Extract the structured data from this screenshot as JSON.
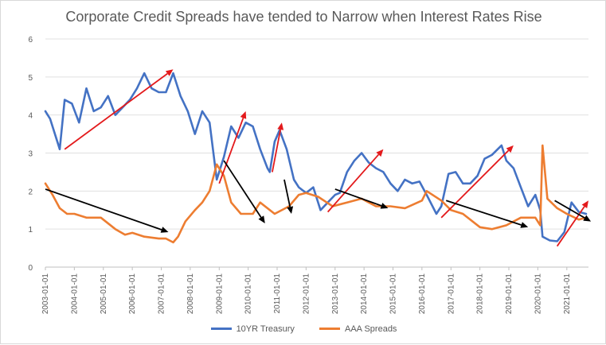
{
  "chart_data": {
    "type": "line",
    "title": "Corporate Credit Spreads have tended to Narrow when Interest Rates Rise",
    "xlabel": "",
    "ylabel": "",
    "ylim": [
      0,
      6
    ],
    "yticks": [
      "0",
      "1",
      "2",
      "3",
      "4",
      "5",
      "6"
    ],
    "xlim": [
      "2003-01-01",
      "2021-10-01"
    ],
    "xticks": [
      "2003-01-01",
      "2004-01-01",
      "2005-01-01",
      "2006-01-01",
      "2007-01-01",
      "2008-01-01",
      "2009-01-01",
      "2010-01-01",
      "2011-01-01",
      "2012-01-01",
      "2013-01-01",
      "2014-01-01",
      "2015-01-01",
      "2016-01-01",
      "2017-01-01",
      "2018-01-01",
      "2019-01-01",
      "2020-01-01",
      "2021-01-01"
    ],
    "grid": true,
    "legend_position": "bottom",
    "colors": {
      "treasury": "#4472c4",
      "spreads": "#ed7d31",
      "up_arrow": "#e31a1c",
      "down_arrow": "#000000"
    },
    "series": [
      {
        "name": "10YR Treasury",
        "x": [
          "2003-01-01",
          "2003-03-01",
          "2003-06-01",
          "2003-07-01",
          "2003-09-01",
          "2003-12-01",
          "2004-03-01",
          "2004-06-01",
          "2004-09-01",
          "2004-12-01",
          "2005-03-01",
          "2005-06-01",
          "2005-09-01",
          "2005-12-01",
          "2006-03-01",
          "2006-06-01",
          "2006-09-01",
          "2006-12-01",
          "2007-03-01",
          "2007-06-01",
          "2007-09-01",
          "2007-12-01",
          "2008-03-01",
          "2008-06-01",
          "2008-09-01",
          "2008-12-01",
          "2009-03-01",
          "2009-06-01",
          "2009-09-01",
          "2009-12-01",
          "2010-03-01",
          "2010-06-01",
          "2010-09-01",
          "2010-10-01",
          "2010-12-01",
          "2011-02-01",
          "2011-05-01",
          "2011-08-01",
          "2011-10-01",
          "2012-01-01",
          "2012-04-01",
          "2012-07-01",
          "2012-10-01",
          "2013-01-01",
          "2013-03-01",
          "2013-06-01",
          "2013-09-01",
          "2013-12-01",
          "2014-03-01",
          "2014-06-01",
          "2014-09-01",
          "2014-12-01",
          "2015-03-01",
          "2015-06-01",
          "2015-09-01",
          "2015-12-01",
          "2016-03-01",
          "2016-07-01",
          "2016-09-01",
          "2016-12-01",
          "2017-03-01",
          "2017-06-01",
          "2017-09-01",
          "2017-12-01",
          "2018-03-01",
          "2018-06-01",
          "2018-10-01",
          "2018-12-01",
          "2019-03-01",
          "2019-06-01",
          "2019-09-01",
          "2019-12-01",
          "2020-02-01",
          "2020-03-01",
          "2020-06-01",
          "2020-09-01",
          "2020-12-01",
          "2021-03-01",
          "2021-06-01",
          "2021-09-01"
        ],
        "values": [
          4.1,
          3.9,
          3.3,
          3.1,
          4.4,
          4.3,
          3.8,
          4.7,
          4.1,
          4.2,
          4.5,
          4.0,
          4.2,
          4.4,
          4.7,
          5.1,
          4.7,
          4.6,
          4.6,
          5.1,
          4.5,
          4.1,
          3.5,
          4.1,
          3.8,
          2.3,
          2.9,
          3.7,
          3.4,
          3.8,
          3.7,
          3.1,
          2.6,
          2.5,
          3.3,
          3.6,
          3.1,
          2.3,
          2.1,
          1.95,
          2.1,
          1.5,
          1.7,
          1.9,
          1.95,
          2.5,
          2.8,
          3.0,
          2.75,
          2.6,
          2.5,
          2.2,
          2.0,
          2.3,
          2.2,
          2.25,
          1.9,
          1.4,
          1.6,
          2.45,
          2.5,
          2.2,
          2.2,
          2.4,
          2.85,
          2.95,
          3.2,
          2.8,
          2.6,
          2.1,
          1.6,
          1.9,
          1.5,
          0.8,
          0.7,
          0.68,
          0.92,
          1.7,
          1.45,
          1.4
        ]
      },
      {
        "name": "AAA Spreads",
        "x": [
          "2003-01-01",
          "2003-04-01",
          "2003-07-01",
          "2003-10-01",
          "2004-01-01",
          "2004-06-01",
          "2004-12-01",
          "2005-06-01",
          "2005-10-01",
          "2006-01-01",
          "2006-06-01",
          "2006-12-01",
          "2007-03-01",
          "2007-06-01",
          "2007-08-01",
          "2007-11-01",
          "2008-03-01",
          "2008-06-01",
          "2008-09-01",
          "2008-12-01",
          "2009-03-01",
          "2009-06-01",
          "2009-10-01",
          "2010-03-01",
          "2010-06-01",
          "2010-12-01",
          "2011-06-01",
          "2011-10-01",
          "2012-01-01",
          "2012-06-01",
          "2012-12-01",
          "2013-06-01",
          "2013-12-01",
          "2014-06-01",
          "2014-12-01",
          "2015-06-01",
          "2016-01-01",
          "2016-03-01",
          "2016-09-01",
          "2017-01-01",
          "2017-06-01",
          "2018-01-01",
          "2018-06-01",
          "2018-12-01",
          "2019-06-01",
          "2019-12-01",
          "2020-02-01",
          "2020-03-01",
          "2020-05-01",
          "2020-09-01",
          "2021-01-01",
          "2021-06-01",
          "2021-09-01"
        ],
        "values": [
          2.2,
          1.9,
          1.55,
          1.4,
          1.4,
          1.3,
          1.3,
          1.0,
          0.85,
          0.9,
          0.8,
          0.75,
          0.75,
          0.65,
          0.8,
          1.2,
          1.5,
          1.7,
          2.0,
          2.7,
          2.4,
          1.7,
          1.4,
          1.4,
          1.7,
          1.4,
          1.6,
          1.9,
          1.95,
          1.85,
          1.6,
          1.7,
          1.8,
          1.6,
          1.6,
          1.55,
          1.75,
          2.0,
          1.75,
          1.5,
          1.4,
          1.05,
          1.0,
          1.1,
          1.3,
          1.3,
          1.1,
          3.2,
          1.8,
          1.55,
          1.4,
          1.25,
          1.3
        ]
      }
    ],
    "annotations": [
      {
        "dir": "up",
        "from": [
          "2003-09-01",
          3.1
        ],
        "to": [
          "2007-06-01",
          5.2
        ]
      },
      {
        "dir": "up",
        "from": [
          "2009-01-01",
          2.2
        ],
        "to": [
          "2009-12-01",
          4.1
        ]
      },
      {
        "dir": "up",
        "from": [
          "2010-11-01",
          2.5
        ],
        "to": [
          "2011-03-01",
          3.8
        ]
      },
      {
        "dir": "up",
        "from": [
          "2012-10-01",
          1.45
        ],
        "to": [
          "2014-09-01",
          3.1
        ]
      },
      {
        "dir": "up",
        "from": [
          "2016-09-01",
          1.3
        ],
        "to": [
          "2019-03-01",
          3.2
        ]
      },
      {
        "dir": "up",
        "from": [
          "2020-09-01",
          0.55
        ],
        "to": [
          "2021-10-01",
          1.75
        ]
      },
      {
        "dir": "down",
        "from": [
          "2003-01-01",
          2.05
        ],
        "to": [
          "2007-04-01",
          0.92
        ]
      },
      {
        "dir": "down",
        "from": [
          "2009-03-01",
          2.8
        ],
        "to": [
          "2010-08-01",
          1.15
        ]
      },
      {
        "dir": "down",
        "from": [
          "2011-04-01",
          2.3
        ],
        "to": [
          "2011-07-01",
          1.4
        ]
      },
      {
        "dir": "down",
        "from": [
          "2013-01-01",
          2.05
        ],
        "to": [
          "2014-11-01",
          1.55
        ]
      },
      {
        "dir": "down",
        "from": [
          "2016-11-01",
          1.75
        ],
        "to": [
          "2019-09-01",
          1.05
        ]
      },
      {
        "dir": "down",
        "from": [
          "2020-08-01",
          1.75
        ],
        "to": [
          "2021-11-01",
          1.2
        ]
      }
    ]
  }
}
